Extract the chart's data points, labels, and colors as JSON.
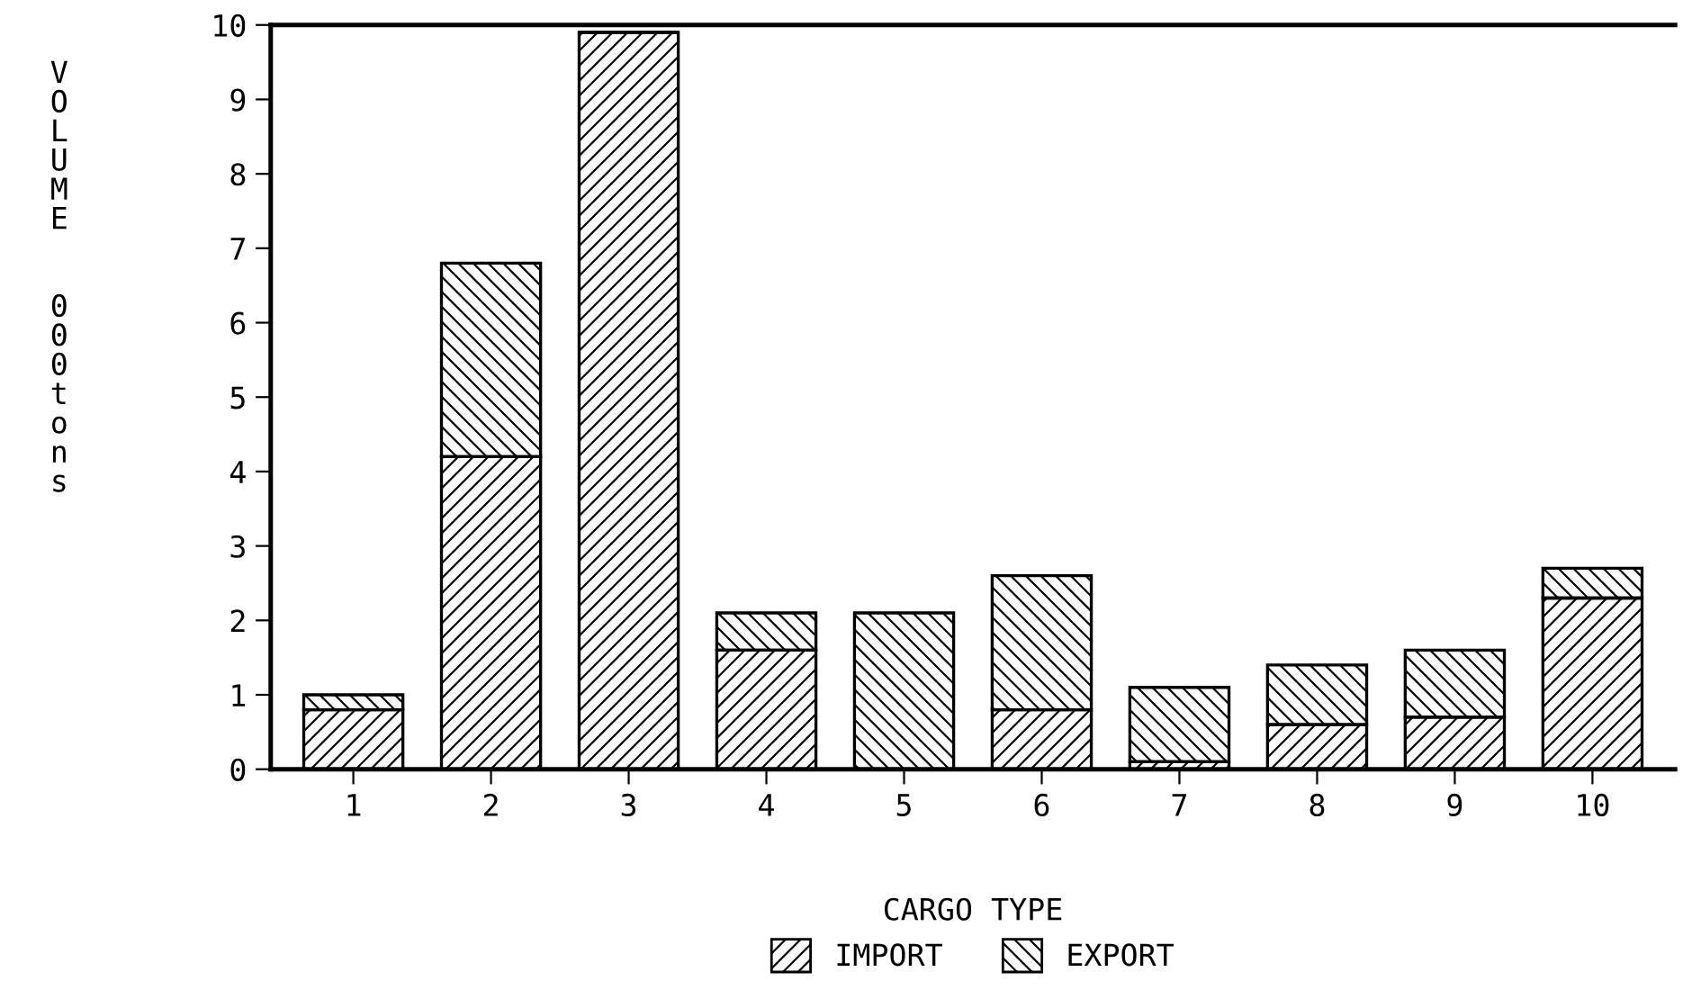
{
  "chart_data": {
    "type": "bar",
    "stacked": true,
    "xlabel": "CARGO TYPE",
    "ylabel": "VOLUME  000tons",
    "categories": [
      "1",
      "2",
      "3",
      "4",
      "5",
      "6",
      "7",
      "8",
      "9",
      "10"
    ],
    "series": [
      {
        "name": "IMPORT",
        "color": "#000000",
        "values": [
          0.8,
          4.2,
          9.9,
          1.6,
          0,
          0.8,
          0.1,
          0.6,
          0.7,
          2.3
        ]
      },
      {
        "name": "EXPORT",
        "color": "#000000",
        "values": [
          0.2,
          2.6,
          0,
          0.5,
          2.1,
          1.8,
          1.0,
          0.8,
          0.9,
          0.4
        ]
      }
    ],
    "ylim": [
      0,
      10
    ],
    "yticks": [
      0,
      1,
      2,
      3,
      4,
      5,
      6,
      7,
      8,
      9,
      10
    ],
    "grid": false,
    "legend": "bottom"
  }
}
